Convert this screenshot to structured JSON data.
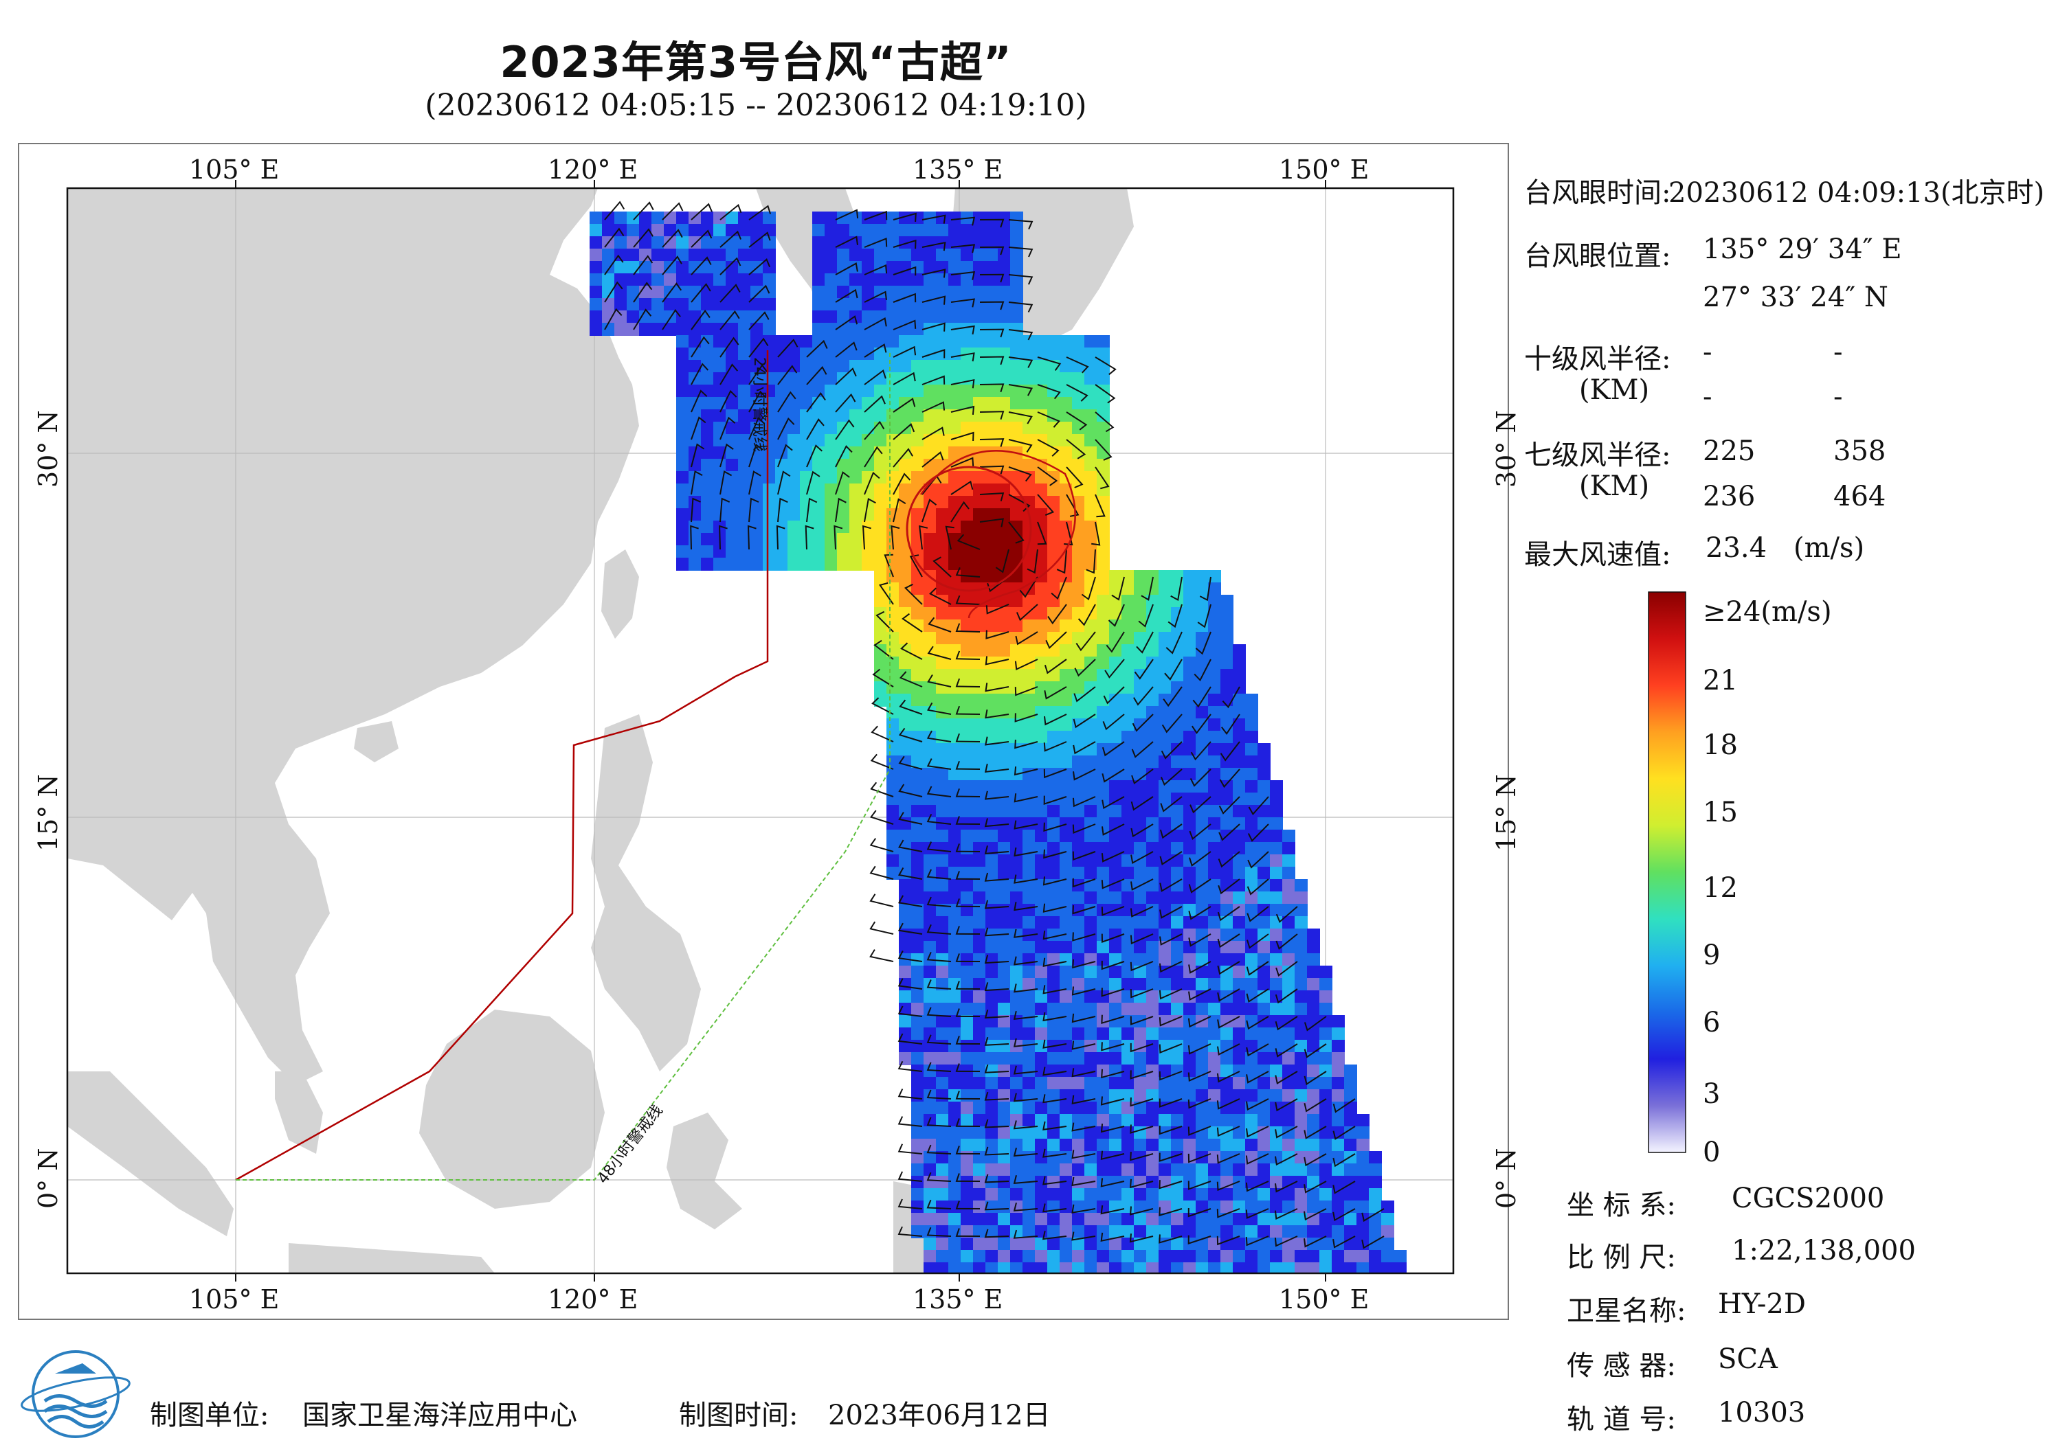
{
  "title": "2023年第3号台风“古超”",
  "subtitle": "(20230612 04:05:15 -- 20230612 04:19:10)",
  "axes": {
    "lon_labels": [
      "105° E",
      "120° E",
      "135° E",
      "150° E"
    ],
    "lat_labels": [
      "30° N",
      "15° N",
      "0° N"
    ]
  },
  "map": {
    "warning_24h_label": "24小时警戒线",
    "warning_48h_label": "48小时警戒线",
    "colors": {
      "land": "#d4d4d4",
      "sea": "#ffffff",
      "warning_24h": "#b00000",
      "warning_48h": "#5fbf3f"
    }
  },
  "info": {
    "eye_time_label": "台风眼时间:",
    "eye_time_value": "20230612 04:09:13(北京时)",
    "eye_pos_label": "台风眼位置:",
    "eye_lon": "135° 29′ 34″ E",
    "eye_lat": "27° 33′ 24″ N",
    "r10_label": "十级风半径:",
    "r10_unit": "(KM)",
    "r10_values": [
      "-",
      "-",
      "-",
      "-"
    ],
    "r7_label": "七级风半径:",
    "r7_unit": "(KM)",
    "r7_values": [
      "225",
      "358",
      "236",
      "464"
    ],
    "max_wind_label": "最大风速值:",
    "max_wind_value": "23.4",
    "max_wind_unit": "(m/s)"
  },
  "colorbar": {
    "top_label": "≥24(m/s)",
    "ticks": [
      "21",
      "18",
      "15",
      "12",
      "9",
      "6",
      "3",
      "0"
    ],
    "colors": [
      "#f4f4ff",
      "#7a70d8",
      "#2020e0",
      "#1a6ae8",
      "#20b0f0",
      "#30e0c0",
      "#60e060",
      "#d0ee30",
      "#ffe020",
      "#ffa020",
      "#ff4020",
      "#d01010",
      "#8a0000"
    ]
  },
  "meta": {
    "crs_label": "坐 标 系:",
    "crs_value": "CGCS2000",
    "scale_label": "比 例 尺:",
    "scale_value": "1:22,138,000",
    "sat_label": "卫星名称:",
    "sat_value": "HY-2D",
    "sensor_label": "传 感 器:",
    "sensor_value": "SCA",
    "orbit_label": "轨 道 号:",
    "orbit_value": "10303"
  },
  "footer": {
    "unit_label": "制图单位:",
    "unit_value": "国家卫星海洋应用中心",
    "time_label": "制图时间:",
    "time_value": "2023年06月12日"
  }
}
